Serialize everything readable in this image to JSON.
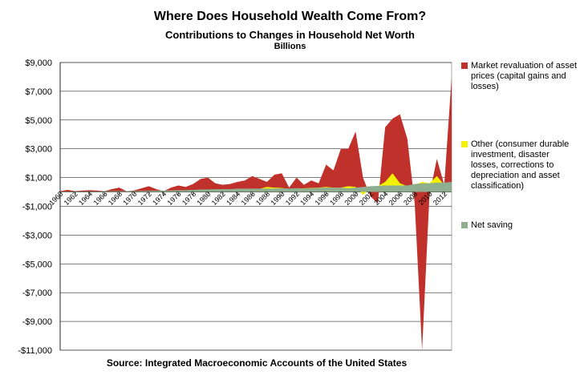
{
  "header": {
    "title": "Where Does Household Wealth Come From?",
    "subtitle": "Contributions to Changes in Household Net Worth",
    "units": "Billions"
  },
  "footer": {
    "source": "Source: Integrated Macroeconomic Accounts of the United States"
  },
  "colors": {
    "market": "#c0312b",
    "other": "#f2f200",
    "saving": "#8fae8f",
    "axis": "#000000",
    "gridline": "#000000"
  },
  "chart_data": {
    "type": "area",
    "title": "Where Does Household Wealth Come From?",
    "subtitle": "Contributions to Changes in Household Net Worth",
    "ylabel": "Billions",
    "ylim": [
      -11000,
      9000
    ],
    "yticks": [
      9000,
      7000,
      5000,
      3000,
      1000,
      -1000,
      -3000,
      -5000,
      -7000,
      -9000,
      -11000
    ],
    "ytick_labels": [
      "$9,000",
      "$7,000",
      "$5,000",
      "$3,000",
      "$1,000",
      "-$1,000",
      "-$3,000",
      "-$5,000",
      "-$7,000",
      "-$9,000",
      "-$11,000"
    ],
    "xtick_labels": [
      "1960",
      "1962",
      "1964",
      "1966",
      "1968",
      "1970",
      "1972",
      "1974",
      "1976",
      "1978",
      "1980",
      "1982",
      "1984",
      "1986",
      "1988",
      "1990",
      "1992",
      "1994",
      "1996",
      "1998",
      "2000",
      "2002",
      "2004",
      "2006",
      "2008",
      "2010",
      "2012"
    ],
    "grid": true,
    "legend_position": "right",
    "x": [
      1960,
      1961,
      1962,
      1963,
      1964,
      1965,
      1966,
      1967,
      1968,
      1969,
      1970,
      1971,
      1972,
      1973,
      1974,
      1975,
      1976,
      1977,
      1978,
      1979,
      1980,
      1981,
      1982,
      1983,
      1984,
      1985,
      1986,
      1987,
      1988,
      1989,
      1990,
      1991,
      1992,
      1993,
      1994,
      1995,
      1996,
      1997,
      1998,
      1999,
      2000,
      2001,
      2002,
      2003,
      2004,
      2005,
      2006,
      2007,
      2008,
      2009,
      2010,
      2011,
      2012,
      2013
    ],
    "series": [
      {
        "name": "Market revaluation of asset prices (capital gains and losses)",
        "color": "#c0312b",
        "values": [
          50,
          150,
          50,
          100,
          120,
          100,
          50,
          200,
          300,
          50,
          100,
          250,
          400,
          200,
          50,
          300,
          450,
          350,
          550,
          900,
          1000,
          600,
          500,
          550,
          700,
          800,
          1100,
          900,
          700,
          1200,
          1300,
          300,
          1000,
          500,
          800,
          600,
          1900,
          1500,
          3000,
          3000,
          4200,
          1000,
          -300,
          -800,
          4500,
          5100,
          5400,
          3700,
          -800,
          -11000,
          -200,
          2300,
          500,
          8000
        ]
      },
      {
        "name": "Other (consumer durable investment, disaster losses, corrections to depreciation and asset classification)",
        "color": "#f2f200",
        "values": [
          20,
          20,
          20,
          30,
          30,
          30,
          30,
          40,
          40,
          40,
          40,
          50,
          60,
          60,
          60,
          70,
          80,
          90,
          100,
          110,
          120,
          130,
          130,
          150,
          170,
          180,
          200,
          220,
          350,
          300,
          280,
          200,
          250,
          250,
          280,
          300,
          350,
          300,
          300,
          400,
          350,
          -200,
          200,
          400,
          700,
          1300,
          600,
          400,
          500,
          700,
          600,
          1100,
          500,
          700
        ]
      },
      {
        "name": "Net saving",
        "color": "#8fae8f",
        "values": [
          30,
          30,
          30,
          40,
          40,
          40,
          50,
          50,
          60,
          60,
          60,
          70,
          80,
          90,
          100,
          110,
          120,
          130,
          150,
          170,
          180,
          190,
          200,
          200,
          230,
          230,
          230,
          230,
          230,
          240,
          250,
          240,
          260,
          240,
          260,
          290,
          300,
          300,
          300,
          250,
          300,
          350,
          400,
          420,
          450,
          450,
          450,
          450,
          550,
          600,
          600,
          650,
          650,
          700
        ]
      }
    ]
  }
}
